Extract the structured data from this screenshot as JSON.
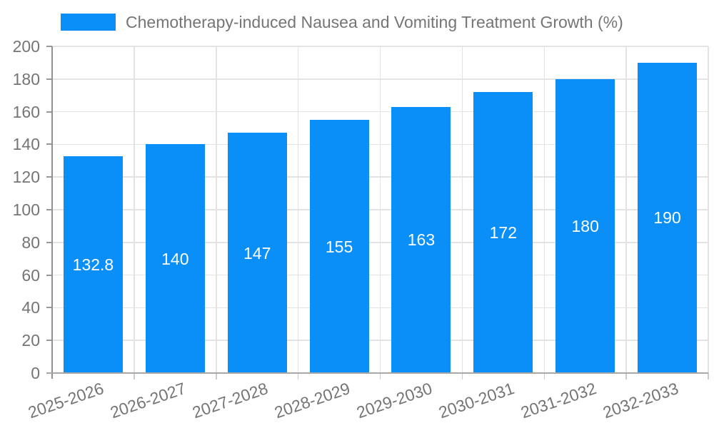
{
  "chart_data": {
    "type": "bar",
    "title": "Chemotherapy-induced Nausea and Vomiting Treatment Growth (%)",
    "categories": [
      "2025-2026",
      "2026-2027",
      "2027-2028",
      "2028-2029",
      "2029-2030",
      "2030-2031",
      "2031-2032",
      "2032-2033"
    ],
    "values": [
      132.8,
      140,
      147,
      155,
      163,
      172,
      180,
      190
    ],
    "value_labels": [
      "132.8",
      "140",
      "147",
      "155",
      "163",
      "172",
      "180",
      "190"
    ],
    "xlabel": "",
    "ylabel": "",
    "ylim": [
      0,
      200
    ],
    "ytick_step": 20,
    "yticks": [
      0,
      20,
      40,
      60,
      80,
      100,
      120,
      140,
      160,
      180,
      200
    ],
    "grid": "on",
    "legend_position": "top-left",
    "value_label_position": "center-of-bar"
  },
  "colors": {
    "bar": "#0A8FF9",
    "grid_line": "#e3e3e3",
    "y_axis_line": "#909090",
    "x_axis_line": "#a8a8a8",
    "y_tick": "#999999",
    "x_tick": "#cccccc",
    "tick_label": "#757575",
    "legend_label": "#757575",
    "value_label": "#ffffff",
    "background": "#ffffff"
  }
}
